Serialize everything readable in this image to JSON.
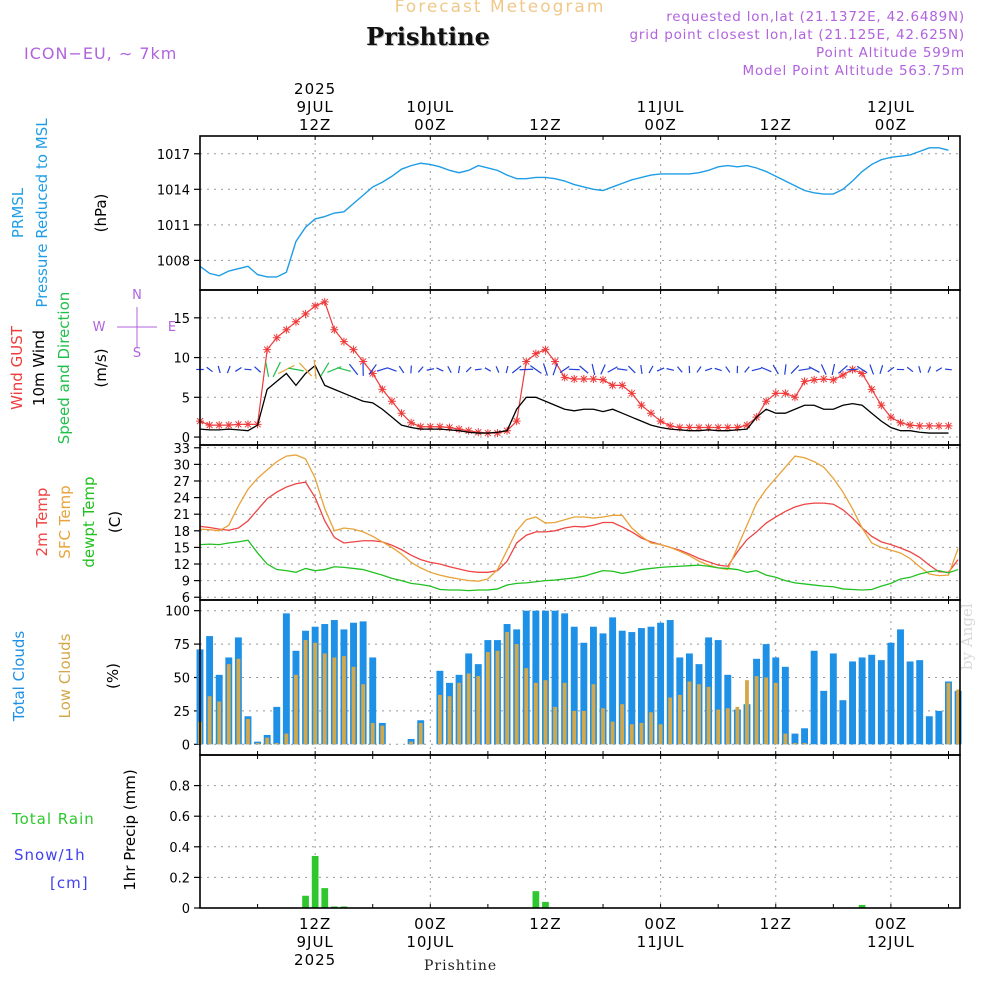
{
  "header": {
    "title": "Forecast Meteogram",
    "location": "Prishtine",
    "model": "ICON−EU, ∼ 7km",
    "requested": "requested lon,lat (21.1372E, 42.6489N)",
    "grid_point": "grid point closest lon,lat (21.125E, 42.625N)",
    "point_altitude": "Point Altitude 599m",
    "model_point_altitude": "Model Point Altitude 563.75m"
  },
  "footer": {
    "location": "Prishtine",
    "watermark": "by Angel"
  },
  "time_axis": {
    "top": [
      {
        "x": 12,
        "lines": [
          "2025",
          "9JUL",
          "12Z"
        ]
      },
      {
        "x": 24,
        "lines": [
          "10JUL",
          "00Z"
        ]
      },
      {
        "x": 36,
        "lines": [
          "12Z"
        ]
      },
      {
        "x": 48,
        "lines": [
          "11JUL",
          "00Z"
        ]
      },
      {
        "x": 60,
        "lines": [
          "12Z"
        ]
      },
      {
        "x": 72,
        "lines": [
          "12JUL",
          "00Z"
        ]
      }
    ],
    "bottom": [
      {
        "x": 12,
        "lines": [
          "12Z",
          "9JUL",
          "2025"
        ]
      },
      {
        "x": 24,
        "lines": [
          "00Z",
          "10JUL"
        ]
      },
      {
        "x": 36,
        "lines": [
          "12Z"
        ]
      },
      {
        "x": 48,
        "lines": [
          "00Z",
          "11JUL"
        ]
      },
      {
        "x": 60,
        "lines": [
          "12Z"
        ]
      },
      {
        "x": 72,
        "lines": [
          "00Z",
          "12JUL"
        ]
      }
    ]
  },
  "colors": {
    "pressure": "#1e9de6",
    "gust": "#ee3b3b",
    "wind": "#000000",
    "wind_dir": "#22c04a",
    "temp2m": "#ee4444",
    "sfc_temp": "#e8a33a",
    "dewpt": "#22c022",
    "total_cloud": "#1e90e6",
    "low_cloud": "#d4a84a",
    "rain": "#2ec82e",
    "snow": "#4040ee",
    "compass": "#b163de",
    "label_blue": "#1e9de6"
  },
  "chart_data": [
    {
      "type": "line",
      "panel": "pressure",
      "ylabels": [
        "PRMSL",
        "Pressure Reduced to MSL",
        "(hPa)"
      ],
      "ylim": [
        1005.5,
        1018.5
      ],
      "yticks": [
        1008,
        1011,
        1014,
        1017
      ],
      "grid": true,
      "x_hours_start": 0,
      "series": [
        {
          "values": [
            1007.5,
            1006.9,
            1006.7,
            1007.1,
            1007.3,
            1007.5,
            1006.8,
            1006.6,
            1006.6,
            1007.0,
            1009.6,
            1010.8,
            1011.5,
            1011.7,
            1012.0,
            1012.1,
            1012.8,
            1013.5,
            1014.2,
            1014.6,
            1015.1,
            1015.7,
            1016.0,
            1016.2,
            1016.1,
            1015.9,
            1015.6,
            1015.4,
            1015.6,
            1016.0,
            1015.8,
            1015.6,
            1015.2,
            1014.9,
            1014.9,
            1015.0,
            1015.0,
            1014.9,
            1014.7,
            1014.4,
            1014.2,
            1014.0,
            1013.9,
            1014.2,
            1014.5,
            1014.8,
            1015.0,
            1015.2,
            1015.3,
            1015.3,
            1015.3,
            1015.3,
            1015.4,
            1015.6,
            1015.9,
            1016.0,
            1015.9,
            1016.0,
            1015.8,
            1015.5,
            1015.1,
            1014.7,
            1014.3,
            1013.9,
            1013.7,
            1013.6,
            1013.6,
            1014.0,
            1014.7,
            1015.5,
            1016.1,
            1016.5,
            1016.7,
            1016.8,
            1016.9,
            1017.2,
            1017.5,
            1017.5,
            1017.3
          ]
        }
      ]
    },
    {
      "type": "line",
      "panel": "wind",
      "ylabels": [
        "Wind GUST",
        "10m Wind",
        "Speed and Direction",
        "(m/s)"
      ],
      "ylim": [
        -1,
        18.5
      ],
      "yticks": [
        0,
        5,
        10,
        15
      ],
      "grid": true,
      "compass": {
        "n": "N",
        "e": "E",
        "s": "S",
        "w": "W"
      },
      "series": [
        {
          "name": "Wind GUST",
          "values": [
            2.0,
            1.5,
            1.5,
            1.5,
            1.6,
            1.6,
            1.6,
            11.0,
            12.5,
            13.5,
            14.5,
            15.5,
            16.5,
            17.0,
            13.5,
            12.0,
            11.0,
            9.5,
            8.0,
            6.0,
            4.5,
            3.0,
            1.8,
            1.3,
            1.3,
            1.3,
            1.2,
            1.0,
            0.8,
            0.6,
            0.5,
            0.5,
            0.8,
            2.0,
            9.5,
            10.5,
            11.0,
            9.5,
            7.5,
            7.3,
            7.3,
            7.3,
            7.2,
            6.5,
            6.5,
            5.5,
            4.0,
            3.0,
            2.0,
            1.4,
            1.2,
            1.2,
            1.2,
            1.2,
            1.2,
            1.2,
            1.2,
            1.5,
            2.5,
            4.5,
            5.5,
            5.5,
            5.0,
            7.0,
            7.2,
            7.3,
            7.2,
            7.8,
            8.5,
            8.0,
            6.0,
            4.0,
            2.5,
            1.8,
            1.5,
            1.4,
            1.4,
            1.4,
            1.4
          ]
        },
        {
          "name": "10m Wind",
          "values": [
            1.0,
            0.9,
            0.9,
            1.0,
            0.9,
            0.8,
            1.5,
            6.0,
            7.0,
            8.0,
            6.5,
            8.0,
            9.0,
            6.5,
            6.0,
            5.5,
            5.0,
            4.5,
            4.3,
            3.5,
            2.5,
            1.5,
            1.2,
            1.0,
            1.0,
            1.0,
            0.9,
            0.8,
            0.6,
            0.5,
            0.5,
            0.6,
            0.8,
            3.5,
            5.0,
            5.0,
            4.5,
            4.0,
            3.5,
            3.3,
            3.5,
            3.5,
            3.2,
            3.5,
            3.0,
            2.5,
            2.0,
            1.5,
            1.2,
            1.0,
            0.9,
            0.8,
            0.8,
            0.9,
            0.8,
            0.8,
            0.9,
            1.0,
            2.5,
            3.5,
            3.0,
            3.0,
            3.5,
            4.0,
            4.0,
            3.5,
            3.5,
            4.0,
            4.2,
            4.0,
            3.0,
            2.0,
            1.2,
            0.8,
            0.8,
            0.6,
            0.5,
            0.5,
            0.5
          ]
        }
      ]
    },
    {
      "type": "line",
      "panel": "temperature",
      "ylabels": [
        "2m Temp",
        "SFC Temp",
        "dewpt Temp",
        "(C)"
      ],
      "ylim": [
        5.5,
        33.5
      ],
      "yticks": [
        6,
        9,
        12,
        15,
        18,
        21,
        24,
        27,
        30,
        33
      ],
      "grid": true,
      "series": [
        {
          "name": "2m Temp",
          "values": [
            18.8,
            18.6,
            18.3,
            18.1,
            18.5,
            19.8,
            21.8,
            23.8,
            25.0,
            25.9,
            26.5,
            26.8,
            24.0,
            19.8,
            16.8,
            15.8,
            16.0,
            16.2,
            16.2,
            16.0,
            15.4,
            14.6,
            13.6,
            12.8,
            12.3,
            12.0,
            11.5,
            11.1,
            10.7,
            10.5,
            10.5,
            10.8,
            12.5,
            15.8,
            17.2,
            17.8,
            17.8,
            18.0,
            18.5,
            18.8,
            18.7,
            19.0,
            19.5,
            19.5,
            18.7,
            17.8,
            16.7,
            16.0,
            15.5,
            15.0,
            14.5,
            13.8,
            13.0,
            12.4,
            11.8,
            11.6,
            14.2,
            16.4,
            17.8,
            19.4,
            20.5,
            21.5,
            22.3,
            22.8,
            23.0,
            23.0,
            22.8,
            21.8,
            20.3,
            18.5,
            17.0,
            16.0,
            15.5,
            14.9,
            14.2,
            13.2,
            11.8,
            10.6,
            10.5,
            12.8
          ]
        },
        {
          "name": "SFC Temp",
          "values": [
            18.3,
            18.2,
            18.0,
            19.0,
            22.5,
            25.5,
            27.5,
            29.0,
            30.5,
            31.5,
            31.7,
            31.0,
            27.5,
            22.0,
            18.0,
            18.5,
            18.3,
            17.8,
            17.0,
            16.0,
            15.0,
            13.8,
            12.3,
            11.3,
            10.5,
            10.0,
            9.6,
            9.3,
            9.0,
            8.9,
            9.3,
            11.0,
            14.5,
            18.0,
            20.0,
            20.5,
            19.4,
            19.5,
            20.0,
            20.5,
            20.5,
            20.3,
            20.5,
            20.8,
            20.8,
            18.5,
            17.0,
            15.8,
            15.5,
            15.0,
            14.3,
            13.5,
            12.5,
            11.8,
            11.3,
            11.0,
            15.0,
            19.0,
            23.0,
            25.5,
            27.5,
            29.5,
            31.5,
            31.2,
            30.5,
            29.5,
            27.5,
            25.0,
            22.0,
            18.5,
            15.8,
            15.0,
            14.5,
            14.0,
            13.0,
            11.5,
            10.2,
            9.9,
            10.0,
            14.8
          ]
        },
        {
          "name": "dewpt Temp",
          "values": [
            15.5,
            15.6,
            15.5,
            15.8,
            16.0,
            16.3,
            14.0,
            12.0,
            11.0,
            10.8,
            10.5,
            11.2,
            10.8,
            11.0,
            11.5,
            11.4,
            11.2,
            11.0,
            10.5,
            10.0,
            9.4,
            9.0,
            8.5,
            8.3,
            8.0,
            7.4,
            7.3,
            7.3,
            7.2,
            7.3,
            7.3,
            7.5,
            8.2,
            8.5,
            8.6,
            8.8,
            9.0,
            9.1,
            9.3,
            9.5,
            9.8,
            10.3,
            10.8,
            10.7,
            10.3,
            10.6,
            11.0,
            11.2,
            11.4,
            11.5,
            11.6,
            11.7,
            11.8,
            11.6,
            11.3,
            11.2,
            11.0,
            10.5,
            10.8,
            10.0,
            9.6,
            9.0,
            8.6,
            8.4,
            8.2,
            8.0,
            7.9,
            7.5,
            7.4,
            7.3,
            7.4,
            8.0,
            8.5,
            9.3,
            9.6,
            10.2,
            10.6,
            10.8,
            10.4,
            11.0
          ]
        }
      ]
    },
    {
      "type": "bar",
      "panel": "clouds",
      "ylabels": [
        "Total Clouds",
        "Low Clouds",
        "(%)"
      ],
      "ylim": [
        -8,
        108
      ],
      "yticks": [
        0,
        25,
        50,
        75,
        100
      ],
      "grid": true,
      "series": [
        {
          "name": "Total Clouds",
          "values": [
            71,
            81,
            52,
            65,
            80,
            21,
            2,
            7,
            28,
            98,
            70,
            85,
            88,
            90,
            93,
            86,
            91,
            92,
            65,
            16,
            0,
            0,
            4,
            18,
            0,
            55,
            46,
            52,
            68,
            60,
            78,
            78,
            90,
            86,
            100,
            100,
            100,
            100,
            98,
            88,
            76,
            88,
            83,
            95,
            85,
            84,
            87,
            88,
            91,
            93,
            65,
            68,
            60,
            80,
            78,
            52,
            26,
            30,
            64,
            75,
            65,
            58,
            8,
            12,
            70,
            40,
            68,
            33,
            62,
            65,
            67,
            63,
            76,
            86,
            62,
            63,
            21,
            25,
            47,
            40
          ]
        },
        {
          "name": "Low Clouds",
          "values": [
            17,
            36,
            32,
            60,
            64,
            19,
            1,
            5,
            1,
            8,
            52,
            78,
            76,
            68,
            65,
            66,
            58,
            45,
            16,
            14,
            0,
            0,
            2,
            16,
            0,
            37,
            36,
            46,
            53,
            51,
            69,
            70,
            84,
            75,
            57,
            46,
            48,
            28,
            46,
            25,
            25,
            45,
            27,
            17,
            30,
            15,
            16,
            24,
            15,
            35,
            37,
            47,
            45,
            43,
            26,
            27,
            28,
            48,
            51,
            50,
            46,
            8,
            1,
            1,
            0,
            0,
            0,
            0,
            0,
            0,
            0,
            0,
            0,
            0,
            0,
            0,
            0,
            0,
            46,
            41
          ]
        }
      ]
    },
    {
      "type": "bar",
      "panel": "precip",
      "ylabels": [
        "Total Rain",
        "Snow/1h",
        "[cm]",
        "1hr Precip (mm)"
      ],
      "ylim": [
        0,
        1.0
      ],
      "yticks": [
        0,
        0.2,
        0.4,
        0.6,
        0.8
      ],
      "grid": true,
      "series": [
        {
          "name": "Total Rain",
          "values": [
            0,
            0,
            0,
            0,
            0,
            0,
            0,
            0,
            0,
            0,
            0,
            0.08,
            0.34,
            0.13,
            0.01,
            0.01,
            0,
            0,
            0,
            0,
            0,
            0,
            0,
            0,
            0,
            0,
            0,
            0,
            0,
            0,
            0,
            0,
            0,
            0,
            0,
            0.11,
            0.04,
            0,
            0,
            0,
            0,
            0,
            0,
            0,
            0,
            0,
            0,
            0,
            0,
            0,
            0,
            0,
            0,
            0,
            0,
            0,
            0,
            0,
            0,
            0,
            0,
            0,
            0,
            0,
            0,
            0,
            0,
            0,
            0,
            0.02,
            0,
            0,
            0,
            0,
            0,
            0,
            0,
            0,
            0
          ]
        }
      ]
    }
  ]
}
